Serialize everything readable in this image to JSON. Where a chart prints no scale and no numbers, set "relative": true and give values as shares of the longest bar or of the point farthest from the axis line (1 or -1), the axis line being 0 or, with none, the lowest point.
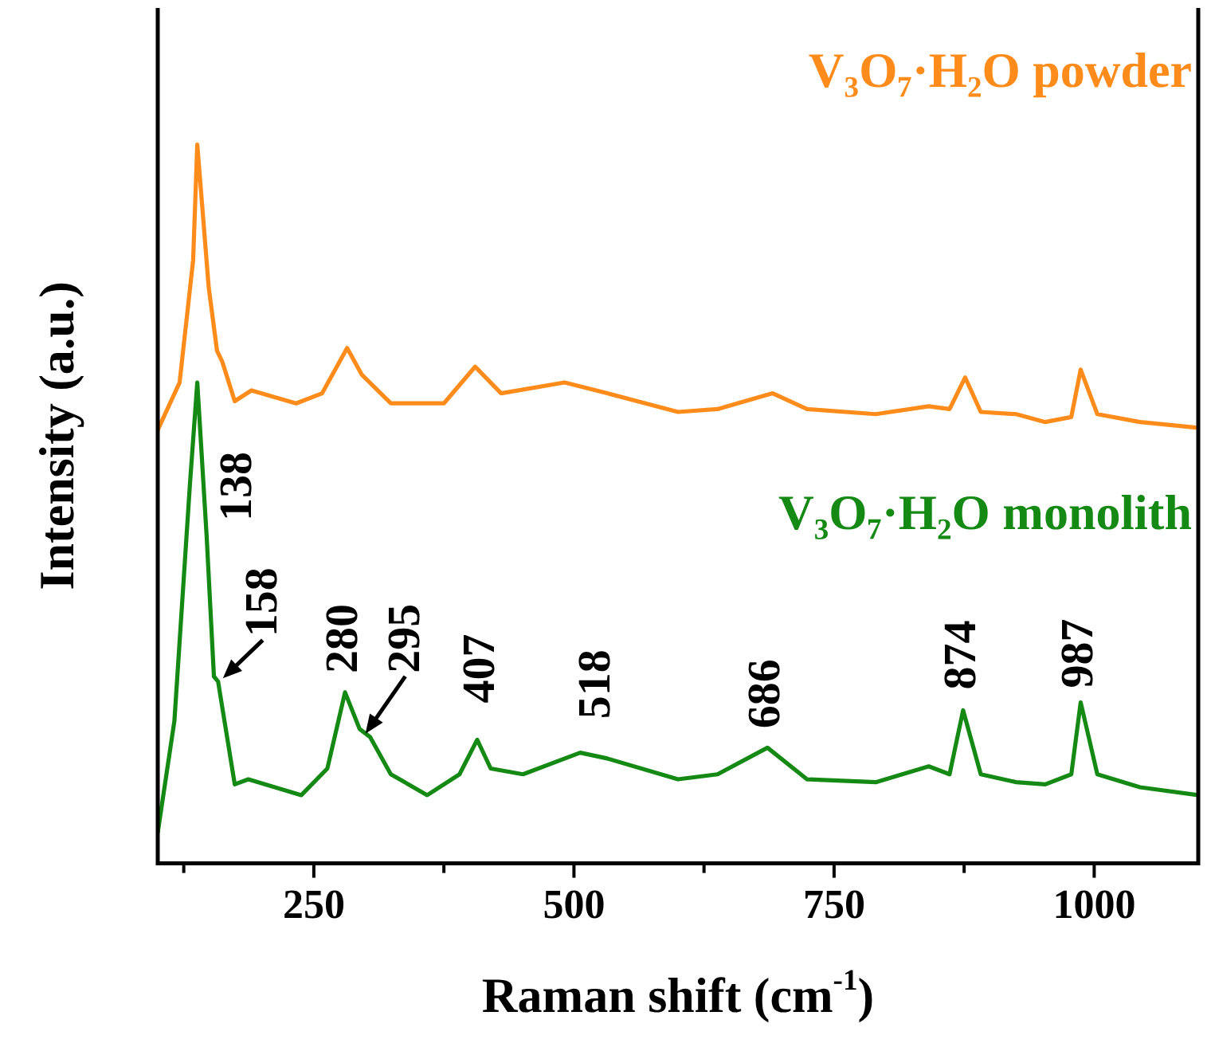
{
  "chart_data": {
    "type": "line",
    "xlabel": "Raman shift (cm$^{-1}$)",
    "ylabel": "Intensity (a.u.)",
    "relative": true,
    "grid": false,
    "legend": false,
    "marker": "none",
    "line_style": "solid",
    "xlim": [
      100,
      1100
    ],
    "xticks": [
      {
        "value": 125,
        "label": null
      },
      250,
      {
        "value": 375,
        "label": null
      },
      500,
      {
        "value": 625,
        "label": null
      },
      750,
      {
        "value": 875,
        "label": null
      },
      1000
    ],
    "series": [
      {
        "name": "V₃O₇·H₂O powder",
        "color": "#ff8c1a",
        "x": [
          100,
          121,
          134,
          138,
          149,
          157,
          162,
          174,
          190,
          233,
          258,
          282,
          296,
          324,
          375,
          405,
          430,
          491,
          532,
          600,
          638,
          691,
          724,
          790,
          841,
          861,
          876,
          891,
          925,
          953,
          978,
          987,
          1003,
          1044,
          1100
        ],
        "values": [
          0.603,
          0.669,
          0.839,
          1.0,
          0.801,
          0.713,
          0.698,
          0.643,
          0.658,
          0.64,
          0.654,
          0.717,
          0.68,
          0.64,
          0.64,
          0.691,
          0.654,
          0.669,
          0.654,
          0.628,
          0.632,
          0.654,
          0.632,
          0.625,
          0.636,
          0.632,
          0.676,
          0.628,
          0.625,
          0.614,
          0.621,
          0.687,
          0.625,
          0.614,
          0.606
        ]
      },
      {
        "name": "V₃O₇·H₂O monolith",
        "color": "#148a14",
        "x": [
          100,
          116,
          131,
          138,
          147,
          154,
          158,
          174,
          187,
          238,
          263,
          280,
          294,
          304,
          324,
          359,
          390,
          407,
          420,
          451,
          506,
          532,
          600,
          638,
          686,
          724,
          790,
          841,
          861,
          874,
          891,
          925,
          953,
          978,
          987,
          1003,
          1044,
          1100
        ],
        "values": [
          0.043,
          0.198,
          0.529,
          0.669,
          0.455,
          0.26,
          0.253,
          0.11,
          0.117,
          0.095,
          0.132,
          0.238,
          0.187,
          0.176,
          0.124,
          0.095,
          0.124,
          0.172,
          0.132,
          0.124,
          0.154,
          0.146,
          0.117,
          0.124,
          0.161,
          0.117,
          0.113,
          0.135,
          0.124,
          0.213,
          0.124,
          0.113,
          0.11,
          0.124,
          0.224,
          0.124,
          0.106,
          0.095
        ]
      }
    ],
    "annotations": [
      {
        "text": "138",
        "x": 138,
        "y": 0.669
      },
      {
        "text": "158",
        "x": 158,
        "y": 0.253
      },
      {
        "text": "280",
        "x": 280,
        "y": 0.238
      },
      {
        "text": "295",
        "x": 295,
        "y": 0.176
      },
      {
        "text": "407",
        "x": 407,
        "y": 0.172
      },
      {
        "text": "518",
        "x": 518,
        "y": 0.15
      },
      {
        "text": "686",
        "x": 686,
        "y": 0.161
      },
      {
        "text": "874",
        "x": 874,
        "y": 0.213
      },
      {
        "text": "987",
        "x": 987,
        "y": 0.224
      }
    ]
  }
}
